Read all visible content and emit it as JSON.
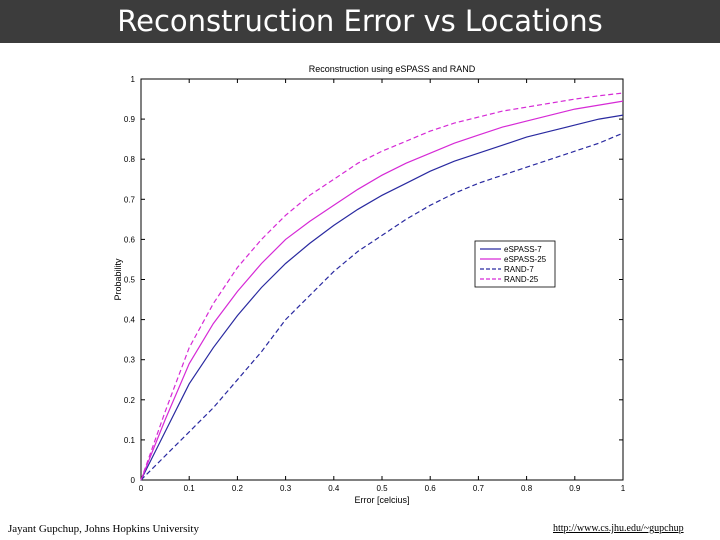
{
  "slide": {
    "title": "Reconstruction Error vs Locations",
    "footer_left": "Jayant Gupchup, Johns Hopkins University",
    "footer_right": "http://www.cs.jhu.edu/~gupchup"
  },
  "colors": {
    "title_bar": "#3c3c3c",
    "blue": "#2a2aa0",
    "magenta": "#d62ad6"
  },
  "chart_data": {
    "type": "line",
    "title": "Reconstruction using eSPASS and RAND",
    "xlabel": "Error [celcius]",
    "ylabel": "Probability",
    "xlim": [
      0,
      1
    ],
    "ylim": [
      0,
      1
    ],
    "xticks": [
      "0",
      "0.1",
      "0.2",
      "0.3",
      "0.4",
      "0.5",
      "0.6",
      "0.7",
      "0.8",
      "0.9",
      "1"
    ],
    "yticks": [
      "0",
      "0.1",
      "0.2",
      "0.3",
      "0.4",
      "0.5",
      "0.6",
      "0.7",
      "0.8",
      "0.9",
      "1"
    ],
    "grid": false,
    "legend_position": "right",
    "x": [
      0,
      0.05,
      0.1,
      0.15,
      0.2,
      0.25,
      0.3,
      0.35,
      0.4,
      0.45,
      0.5,
      0.55,
      0.6,
      0.65,
      0.7,
      0.75,
      0.8,
      0.85,
      0.9,
      0.95,
      1.0
    ],
    "series": [
      {
        "name": "eSPASS-7",
        "color": "#2a2aa0",
        "style": "solid",
        "values": [
          0,
          0.12,
          0.24,
          0.33,
          0.41,
          0.48,
          0.54,
          0.59,
          0.635,
          0.675,
          0.71,
          0.74,
          0.77,
          0.795,
          0.815,
          0.835,
          0.855,
          0.87,
          0.885,
          0.9,
          0.91
        ]
      },
      {
        "name": "eSPASS-25",
        "color": "#d62ad6",
        "style": "solid",
        "values": [
          0,
          0.15,
          0.29,
          0.39,
          0.47,
          0.54,
          0.6,
          0.645,
          0.685,
          0.725,
          0.76,
          0.79,
          0.815,
          0.84,
          0.86,
          0.88,
          0.895,
          0.91,
          0.925,
          0.935,
          0.945
        ]
      },
      {
        "name": "RAND-7",
        "color": "#2a2aa0",
        "style": "dashed",
        "values": [
          0,
          0.06,
          0.12,
          0.18,
          0.25,
          0.32,
          0.4,
          0.46,
          0.52,
          0.57,
          0.61,
          0.65,
          0.685,
          0.715,
          0.74,
          0.76,
          0.78,
          0.8,
          0.82,
          0.84,
          0.865
        ]
      },
      {
        "name": "RAND-25",
        "color": "#d62ad6",
        "style": "dashed",
        "values": [
          0,
          0.17,
          0.33,
          0.44,
          0.53,
          0.6,
          0.66,
          0.71,
          0.75,
          0.79,
          0.82,
          0.845,
          0.87,
          0.89,
          0.905,
          0.92,
          0.93,
          0.94,
          0.95,
          0.958,
          0.965
        ]
      }
    ]
  }
}
